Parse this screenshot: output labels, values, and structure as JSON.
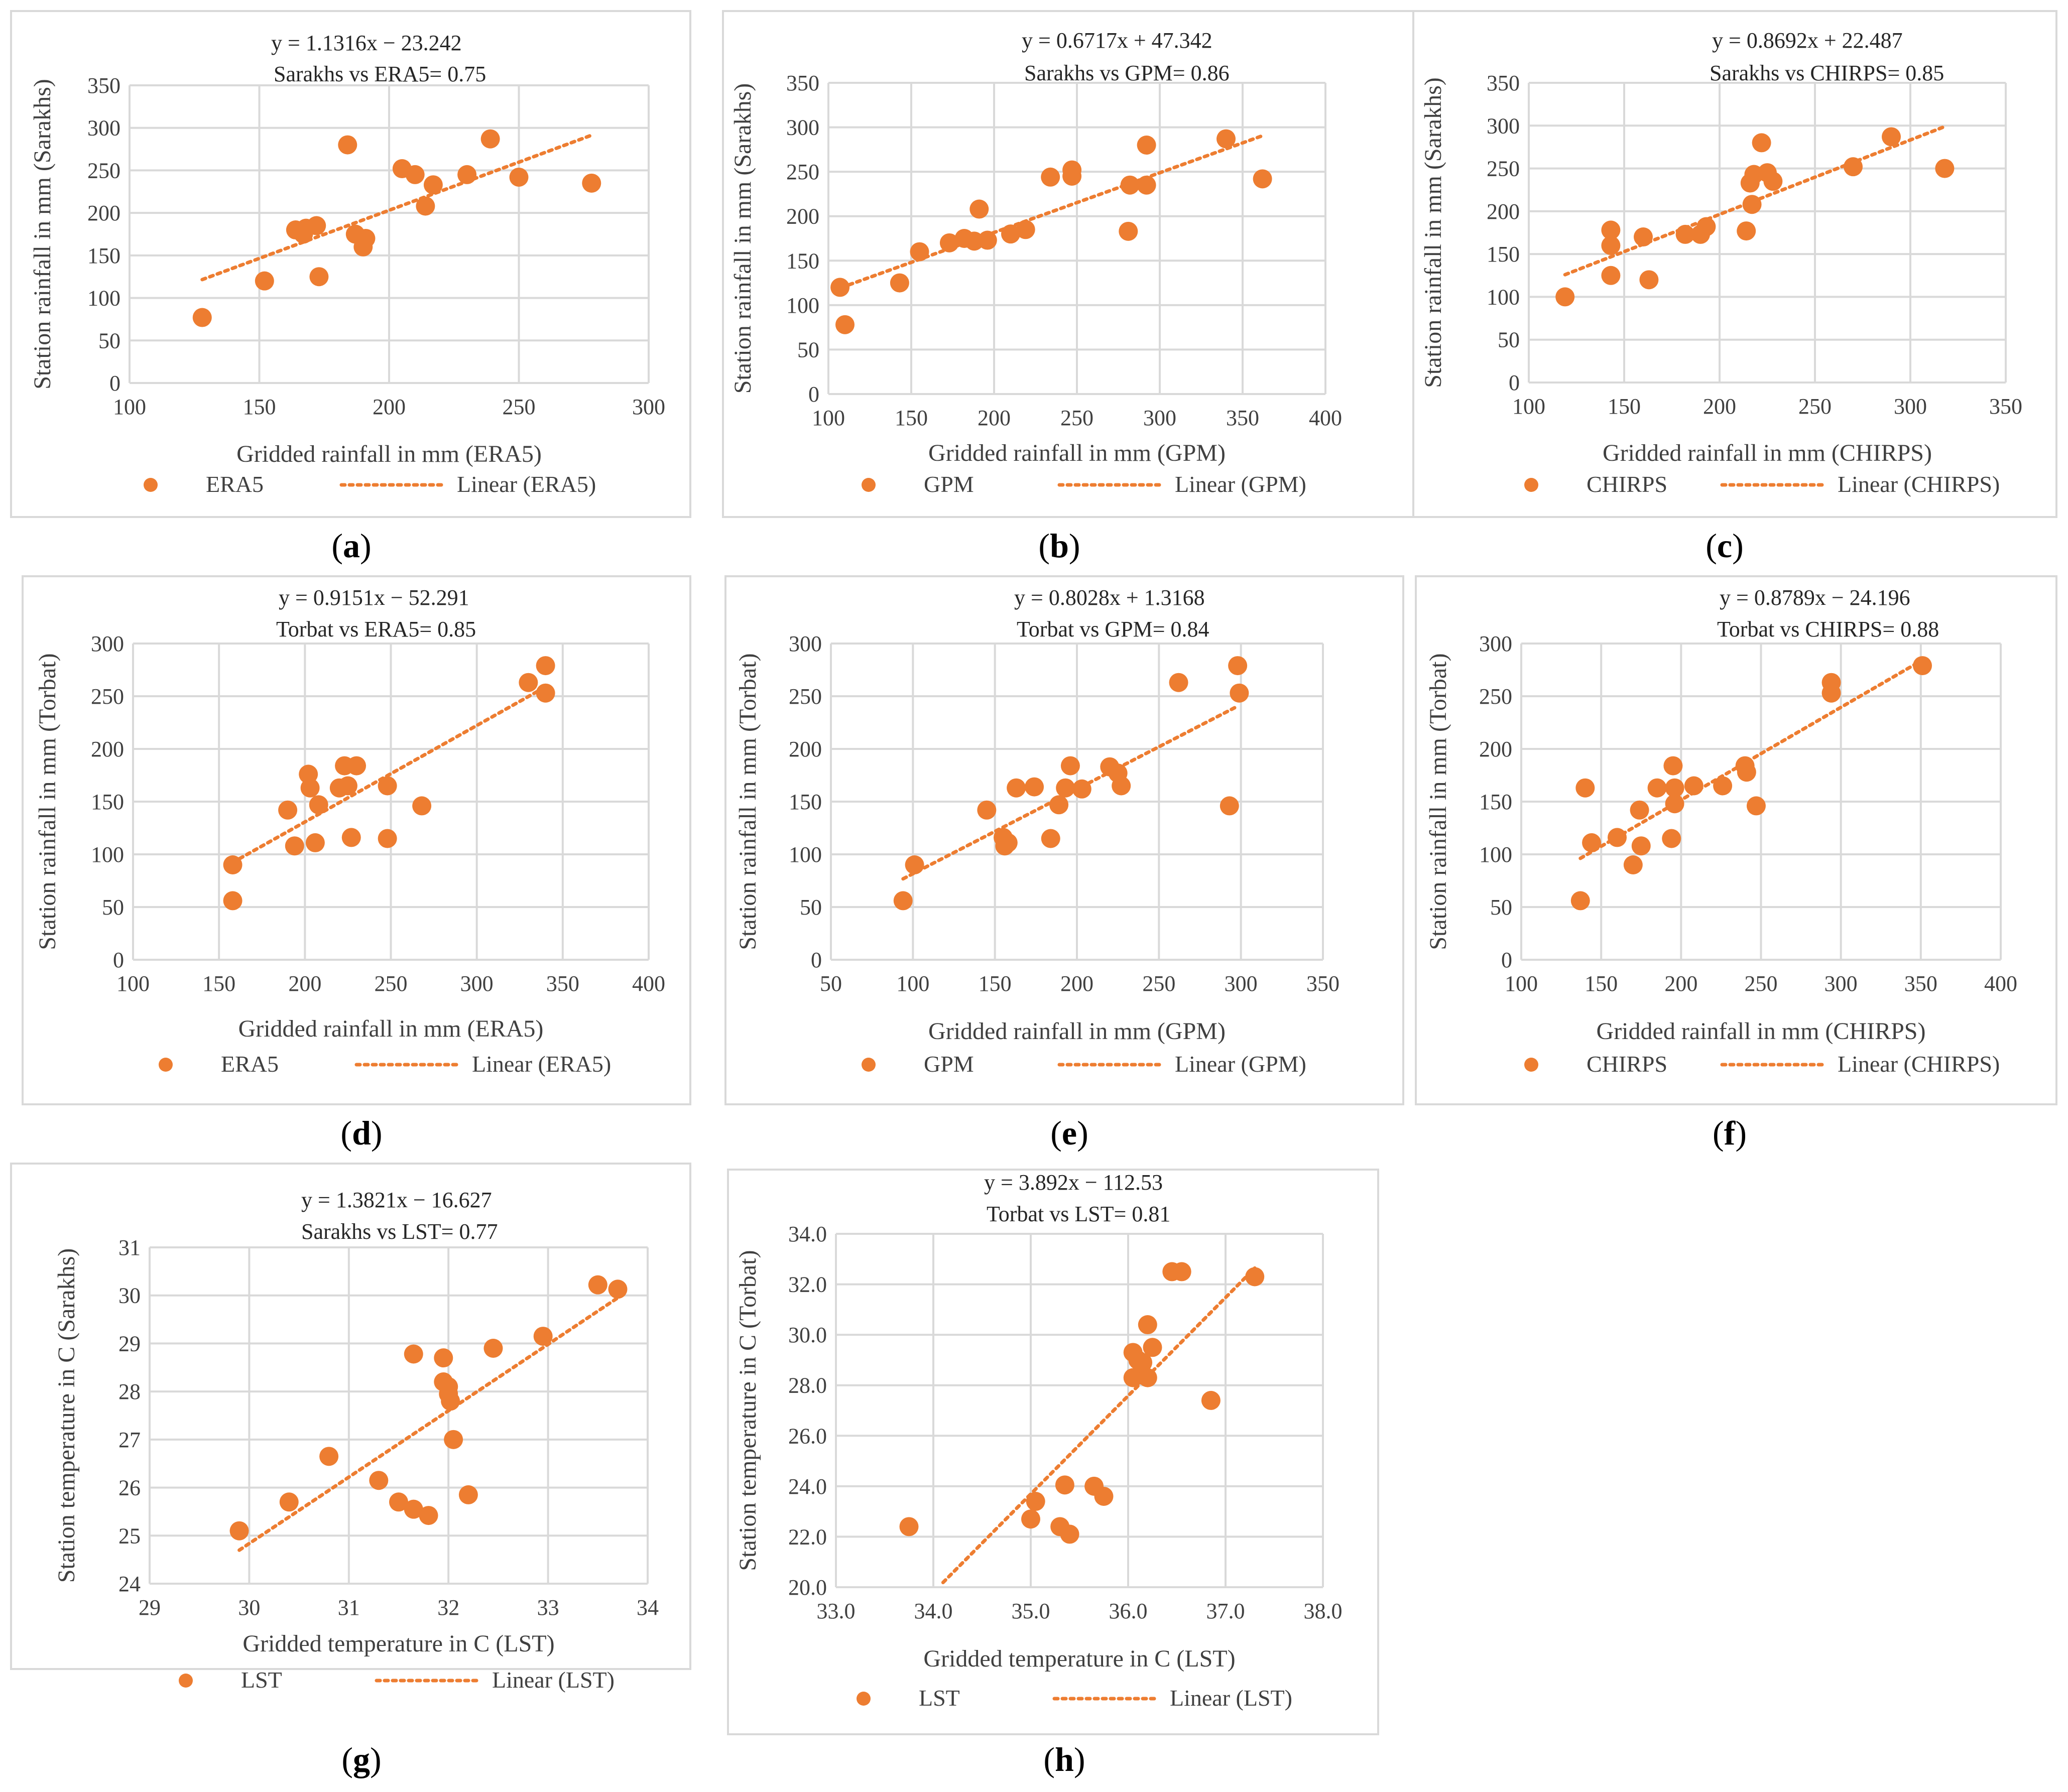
{
  "accent_color": "#ED7D31",
  "chart_data": [
    {
      "id": "a",
      "type": "scatter",
      "label_open": "(",
      "label_letter": "a",
      "label_close": ")",
      "equation": "y = 1.1316x − 23.242",
      "annotation": "Sarakhs vs ERA5= 0.75",
      "xlabel": "Gridded rainfall in mm (ERA5)",
      "ylabel": "Station rainfall in mm (Sarakhs)",
      "xlim": [
        100,
        300
      ],
      "ylim": [
        0,
        350
      ],
      "xticks": [
        100,
        150,
        200,
        250,
        300
      ],
      "yticks": [
        0,
        50,
        100,
        150,
        200,
        250,
        300,
        350
      ],
      "tick_decimals": 0,
      "series_name": "ERA5",
      "trend_name": "Linear (ERA5)",
      "trend": {
        "slope": 1.1316,
        "intercept": -23.242,
        "x_range": [
          128,
          278
        ]
      },
      "points": [
        [
          128,
          77
        ],
        [
          152,
          120
        ],
        [
          164,
          180
        ],
        [
          167,
          175
        ],
        [
          168,
          182
        ],
        [
          172,
          185
        ],
        [
          173,
          125
        ],
        [
          184,
          280
        ],
        [
          187,
          175
        ],
        [
          190,
          160
        ],
        [
          191,
          170
        ],
        [
          205,
          252
        ],
        [
          210,
          245
        ],
        [
          214,
          208
        ],
        [
          217,
          233
        ],
        [
          230,
          245
        ],
        [
          239,
          287
        ],
        [
          250,
          242
        ],
        [
          278,
          235
        ]
      ]
    },
    {
      "id": "b",
      "type": "scatter",
      "label_open": "(",
      "label_letter": "b",
      "label_close": ")",
      "equation": "y = 0.6717x + 47.342",
      "annotation": "Sarakhs vs GPM= 0.86",
      "xlabel": "Gridded rainfall in mm (GPM)",
      "ylabel": "Station rainfall in mm (Sarakhs)",
      "xlim": [
        100,
        400
      ],
      "ylim": [
        0,
        350
      ],
      "xticks": [
        100,
        150,
        200,
        250,
        300,
        350,
        400
      ],
      "yticks": [
        0,
        50,
        100,
        150,
        200,
        250,
        300,
        350
      ],
      "tick_decimals": 0,
      "series_name": "GPM",
      "trend_name": "Linear (GPM)",
      "trend": {
        "slope": 0.6717,
        "intercept": 47.342,
        "x_range": [
          108,
          362
        ]
      },
      "points": [
        [
          107,
          120
        ],
        [
          110,
          78
        ],
        [
          143,
          125
        ],
        [
          155,
          160
        ],
        [
          173,
          170
        ],
        [
          182,
          175
        ],
        [
          188,
          172
        ],
        [
          191,
          208
        ],
        [
          196,
          173
        ],
        [
          210,
          180
        ],
        [
          219,
          185
        ],
        [
          234,
          244
        ],
        [
          247,
          245
        ],
        [
          247,
          252
        ],
        [
          281,
          183
        ],
        [
          282,
          235
        ],
        [
          292,
          280
        ],
        [
          292,
          235
        ],
        [
          340,
          287
        ],
        [
          362,
          242
        ]
      ]
    },
    {
      "id": "c",
      "type": "scatter",
      "label_open": "(",
      "label_letter": "c",
      "label_close": ")",
      "equation": "y = 0.8692x + 22.487",
      "annotation": "Sarakhs vs CHIRPS= 0.85",
      "xlabel": "Gridded rainfall in mm (CHIRPS)",
      "ylabel": "Station rainfall in mm (Sarakhs)",
      "xlim": [
        100,
        350
      ],
      "ylim": [
        0,
        350
      ],
      "xticks": [
        100,
        150,
        200,
        250,
        300,
        350
      ],
      "yticks": [
        0,
        50,
        100,
        150,
        200,
        250,
        300,
        350
      ],
      "tick_decimals": 0,
      "series_name": "CHIRPS",
      "trend_name": "Linear (CHIRPS)",
      "trend": {
        "slope": 0.8692,
        "intercept": 22.487,
        "x_range": [
          119,
          318
        ]
      },
      "points": [
        [
          119,
          100
        ],
        [
          143,
          160
        ],
        [
          143,
          178
        ],
        [
          143,
          125
        ],
        [
          160,
          170
        ],
        [
          163,
          120
        ],
        [
          182,
          173
        ],
        [
          190,
          173
        ],
        [
          193,
          182
        ],
        [
          214,
          177
        ],
        [
          216,
          233
        ],
        [
          217,
          208
        ],
        [
          218,
          243
        ],
        [
          222,
          280
        ],
        [
          225,
          245
        ],
        [
          228,
          235
        ],
        [
          270,
          252
        ],
        [
          290,
          287
        ],
        [
          318,
          250
        ]
      ]
    },
    {
      "id": "d",
      "type": "scatter",
      "label_open": "(",
      "label_letter": "d",
      "label_close": ")",
      "equation": "y = 0.9151x − 52.291",
      "annotation": "Torbat vs ERA5= 0.85",
      "xlabel": "Gridded rainfall in mm (ERA5)",
      "ylabel": "Station rainfall in mm (Torbat)",
      "xlim": [
        100,
        400
      ],
      "ylim": [
        0,
        300
      ],
      "xticks": [
        100,
        150,
        200,
        250,
        300,
        350,
        400
      ],
      "yticks": [
        0,
        50,
        100,
        150,
        200,
        250,
        300
      ],
      "tick_decimals": 0,
      "series_name": "ERA5",
      "trend_name": "Linear (ERA5)",
      "trend": {
        "slope": 0.9151,
        "intercept": -52.291,
        "x_range": [
          158,
          340
        ]
      },
      "points": [
        [
          158,
          56
        ],
        [
          158,
          90
        ],
        [
          190,
          142
        ],
        [
          194,
          108
        ],
        [
          202,
          176
        ],
        [
          203,
          163
        ],
        [
          206,
          111
        ],
        [
          208,
          147
        ],
        [
          220,
          163
        ],
        [
          223,
          184
        ],
        [
          225,
          165
        ],
        [
          227,
          116
        ],
        [
          230,
          184
        ],
        [
          248,
          165
        ],
        [
          248,
          115
        ],
        [
          268,
          146
        ],
        [
          330,
          263
        ],
        [
          340,
          279
        ],
        [
          340,
          253
        ]
      ]
    },
    {
      "id": "e",
      "type": "scatter",
      "label_open": "(",
      "label_letter": "e",
      "label_close": ")",
      "equation": "y = 0.8028x + 1.3168",
      "annotation": "Torbat vs GPM= 0.84",
      "xlabel": "Gridded rainfall in mm (GPM)",
      "ylabel": "Station rainfall in mm (Torbat)",
      "xlim": [
        50,
        350
      ],
      "ylim": [
        0,
        300
      ],
      "xticks": [
        50,
        100,
        150,
        200,
        250,
        300,
        350
      ],
      "yticks": [
        0,
        50,
        100,
        150,
        200,
        250,
        300
      ],
      "tick_decimals": 0,
      "series_name": "GPM",
      "trend_name": "Linear (GPM)",
      "trend": {
        "slope": 0.8028,
        "intercept": 1.3168,
        "x_range": [
          94,
          298
        ]
      },
      "points": [
        [
          94,
          56
        ],
        [
          101,
          90
        ],
        [
          145,
          142
        ],
        [
          155,
          116
        ],
        [
          156,
          108
        ],
        [
          158,
          111
        ],
        [
          163,
          163
        ],
        [
          174,
          164
        ],
        [
          184,
          115
        ],
        [
          189,
          147
        ],
        [
          193,
          163
        ],
        [
          196,
          184
        ],
        [
          203,
          162
        ],
        [
          220,
          183
        ],
        [
          225,
          177
        ],
        [
          227,
          165
        ],
        [
          262,
          263
        ],
        [
          293,
          146
        ],
        [
          298,
          279
        ],
        [
          299,
          253
        ]
      ]
    },
    {
      "id": "f",
      "type": "scatter",
      "label_open": "(",
      "label_letter": "f",
      "label_close": ")",
      "equation": "y = 0.8789x − 24.196",
      "annotation": "Torbat vs CHIRPS= 0.88",
      "xlabel": "Gridded rainfall in mm (CHIRPS)",
      "ylabel": "Station rainfall in mm (Torbat)",
      "xlim": [
        100,
        400
      ],
      "ylim": [
        0,
        300
      ],
      "xticks": [
        100,
        150,
        200,
        250,
        300,
        350,
        400
      ],
      "yticks": [
        0,
        50,
        100,
        150,
        200,
        250,
        300
      ],
      "tick_decimals": 0,
      "series_name": "CHIRPS",
      "trend_name": "Linear (CHIRPS)",
      "trend": {
        "slope": 0.8789,
        "intercept": -24.196,
        "x_range": [
          137,
          351
        ]
      },
      "points": [
        [
          137,
          56
        ],
        [
          140,
          163
        ],
        [
          144,
          111
        ],
        [
          160,
          116
        ],
        [
          170,
          90
        ],
        [
          174,
          142
        ],
        [
          175,
          108
        ],
        [
          185,
          163
        ],
        [
          194,
          115
        ],
        [
          195,
          184
        ],
        [
          196,
          148
        ],
        [
          196,
          163
        ],
        [
          208,
          165
        ],
        [
          226,
          165
        ],
        [
          240,
          184
        ],
        [
          241,
          178
        ],
        [
          247,
          146
        ],
        [
          294,
          263
        ],
        [
          294,
          253
        ],
        [
          351,
          279
        ]
      ]
    },
    {
      "id": "g",
      "type": "scatter",
      "label_open": "(",
      "label_letter": "g",
      "label_close": ")",
      "equation": "y = 1.3821x − 16.627",
      "annotation": "Sarakhs vs LST=  0.77",
      "xlabel": "Gridded temperature in C (LST)",
      "ylabel": "Station temperature in C (Sarakhs)",
      "xlim": [
        29,
        34
      ],
      "ylim": [
        24,
        31
      ],
      "xticks": [
        29,
        30,
        31,
        32,
        33,
        34
      ],
      "yticks": [
        24,
        25,
        26,
        27,
        28,
        29,
        30,
        31
      ],
      "tick_decimals": 0,
      "series_name": "LST",
      "trend_name": "Linear (LST)",
      "trend": {
        "slope": 1.3821,
        "intercept": -16.627,
        "x_range": [
          29.9,
          33.7
        ]
      },
      "points": [
        [
          29.9,
          25.1
        ],
        [
          30.4,
          25.7
        ],
        [
          30.8,
          26.65
        ],
        [
          31.3,
          26.15
        ],
        [
          31.5,
          25.7
        ],
        [
          31.65,
          25.55
        ],
        [
          31.8,
          25.42
        ],
        [
          31.65,
          28.78
        ],
        [
          31.95,
          28.7
        ],
        [
          31.95,
          28.2
        ],
        [
          32.0,
          28.1
        ],
        [
          32.0,
          27.95
        ],
        [
          32.02,
          27.8
        ],
        [
          32.05,
          27.0
        ],
        [
          32.2,
          25.85
        ],
        [
          32.45,
          28.9
        ],
        [
          32.95,
          29.15
        ],
        [
          33.5,
          30.22
        ],
        [
          33.7,
          30.13
        ]
      ]
    },
    {
      "id": "h",
      "type": "scatter",
      "label_open": "(",
      "label_letter": "h",
      "label_close": ")",
      "equation": "y = 3.892x − 112.53",
      "annotation": "Torbat vs LST=  0.81",
      "xlabel": "Gridded temperature in C (LST)",
      "ylabel": "Station temperature in C (Torbat)",
      "xlim": [
        33,
        38
      ],
      "ylim": [
        20,
        34
      ],
      "xticks": [
        33,
        34,
        35,
        36,
        37,
        38
      ],
      "yticks": [
        20,
        22,
        24,
        26,
        28,
        30,
        32,
        34
      ],
      "tick_decimals": 1,
      "series_name": "LST",
      "trend_name": "Linear (LST)",
      "trend": {
        "slope": 3.892,
        "intercept": -112.53,
        "x_range": [
          34.1,
          37.3
        ]
      },
      "points": [
        [
          33.75,
          22.4
        ],
        [
          35.0,
          22.7
        ],
        [
          35.05,
          23.4
        ],
        [
          35.3,
          22.4
        ],
        [
          35.35,
          24.05
        ],
        [
          35.4,
          22.1
        ],
        [
          35.65,
          24.0
        ],
        [
          35.75,
          23.6
        ],
        [
          36.05,
          28.3
        ],
        [
          36.05,
          29.3
        ],
        [
          36.1,
          29.0
        ],
        [
          36.15,
          28.9
        ],
        [
          36.2,
          28.3
        ],
        [
          36.2,
          30.4
        ],
        [
          36.25,
          29.5
        ],
        [
          36.45,
          32.5
        ],
        [
          36.55,
          32.5
        ],
        [
          36.85,
          27.4
        ],
        [
          37.3,
          32.3
        ]
      ]
    }
  ]
}
